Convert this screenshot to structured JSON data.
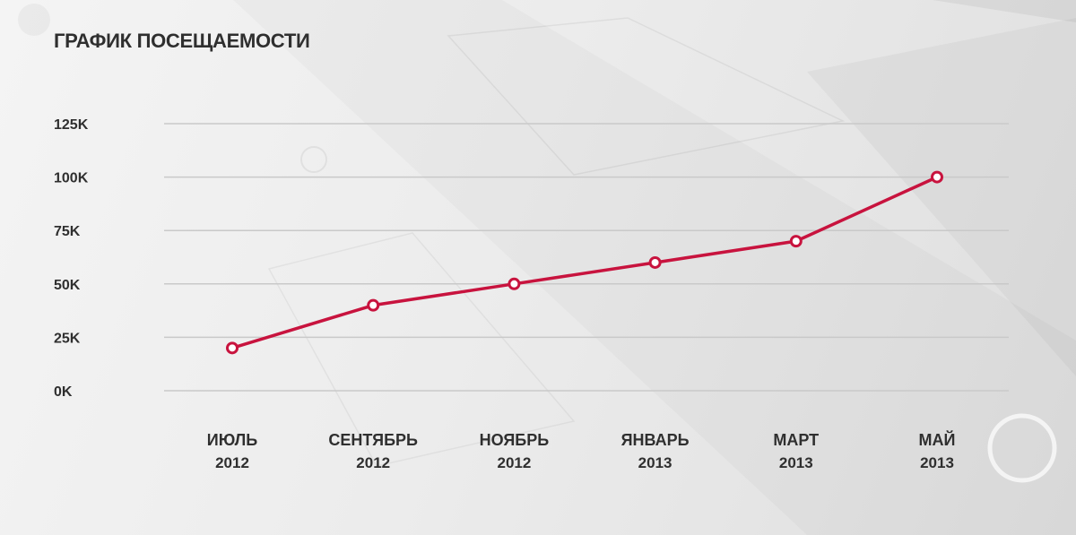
{
  "title": "ГРАФИК ПОСЕЩАЕМОСТИ",
  "colors": {
    "line": "#c8133e",
    "marker_fill": "#ffffff",
    "grid": "#c9c9c9",
    "text": "#2f2f2f"
  },
  "chart_data": {
    "type": "line",
    "title": "ГРАФИК ПОСЕЩАЕМОСТИ",
    "xlabel": "",
    "ylabel": "",
    "categories": [
      {
        "month": "ИЮЛЬ",
        "year": "2012"
      },
      {
        "month": "СЕНТЯБРЬ",
        "year": "2012"
      },
      {
        "month": "НОЯБРЬ",
        "year": "2012"
      },
      {
        "month": "ЯНВАРЬ",
        "year": "2013"
      },
      {
        "month": "МАРТ",
        "year": "2013"
      },
      {
        "month": "МАЙ",
        "year": "2013"
      }
    ],
    "values": [
      20000,
      40000,
      50000,
      60000,
      70000,
      100000
    ],
    "ylim": [
      0,
      125000
    ],
    "yticks": [
      {
        "value": 0,
        "label": "0K"
      },
      {
        "value": 25000,
        "label": "25K"
      },
      {
        "value": 50000,
        "label": "50K"
      },
      {
        "value": 75000,
        "label": "75K"
      },
      {
        "value": 100000,
        "label": "100K"
      },
      {
        "value": 125000,
        "label": "125K"
      }
    ],
    "grid": true,
    "legend": "none"
  }
}
